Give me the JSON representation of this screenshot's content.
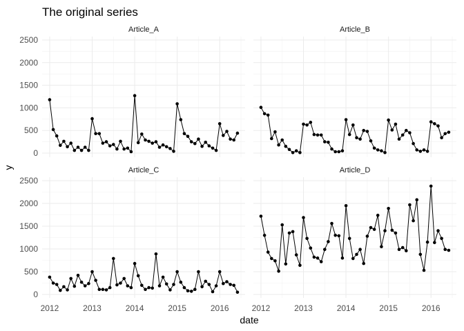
{
  "chart_data": {
    "type": "line",
    "title": "The original series",
    "xlabel": "date",
    "ylabel": "y",
    "x_ticks": [
      "2012",
      "2013",
      "2014",
      "2015",
      "2016"
    ],
    "y_ticks": [
      "0",
      "500",
      "1000",
      "1500",
      "2000",
      "2500"
    ],
    "xlim": [
      2011.92,
      2016.5
    ],
    "ylim": [
      0,
      2500
    ],
    "grid": true,
    "point_style": "filled-circle",
    "x_start": "2012-01",
    "x_step": "month",
    "panels": [
      {
        "name": "Article_A",
        "values": [
          1180,
          520,
          380,
          170,
          260,
          140,
          220,
          60,
          130,
          60,
          130,
          60,
          760,
          430,
          430,
          220,
          250,
          160,
          190,
          90,
          260,
          90,
          110,
          30,
          1270,
          230,
          420,
          290,
          260,
          220,
          250,
          130,
          180,
          140,
          100,
          40,
          1090,
          740,
          430,
          370,
          250,
          210,
          310,
          150,
          240,
          160,
          110,
          60,
          650,
          390,
          480,
          310,
          290,
          440
        ]
      },
      {
        "name": "Article_B",
        "values": [
          1010,
          870,
          840,
          320,
          470,
          180,
          290,
          150,
          80,
          10,
          50,
          10,
          640,
          620,
          680,
          410,
          400,
          400,
          250,
          240,
          90,
          30,
          30,
          50,
          740,
          410,
          620,
          340,
          310,
          500,
          480,
          270,
          110,
          70,
          50,
          10,
          730,
          510,
          640,
          310,
          400,
          500,
          450,
          210,
          70,
          40,
          70,
          40,
          690,
          650,
          600,
          340,
          430,
          460
        ]
      },
      {
        "name": "Article_C",
        "values": [
          380,
          250,
          220,
          90,
          170,
          100,
          350,
          180,
          420,
          270,
          190,
          240,
          500,
          310,
          110,
          110,
          100,
          150,
          790,
          210,
          250,
          350,
          190,
          150,
          680,
          410,
          200,
          110,
          150,
          140,
          890,
          190,
          380,
          230,
          100,
          220,
          500,
          270,
          150,
          80,
          70,
          110,
          500,
          170,
          290,
          220,
          60,
          190,
          500,
          240,
          280,
          220,
          200,
          50
        ]
      },
      {
        "name": "Article_D",
        "values": [
          1720,
          1300,
          930,
          790,
          740,
          510,
          1530,
          670,
          1350,
          1380,
          870,
          640,
          1690,
          1230,
          1020,
          820,
          800,
          720,
          990,
          1160,
          1560,
          1300,
          1290,
          800,
          1950,
          1230,
          790,
          880,
          990,
          680,
          1280,
          1470,
          1430,
          1740,
          1050,
          1400,
          1890,
          1410,
          1350,
          990,
          1030,
          960,
          1970,
          1620,
          2080,
          880,
          530,
          1150,
          2380,
          1140,
          1400,
          1230,
          990,
          970
        ]
      }
    ]
  }
}
